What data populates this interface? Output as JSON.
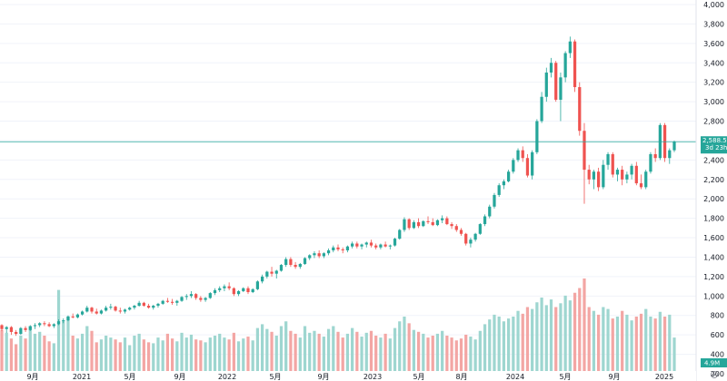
{
  "colors": {
    "up": "#26a69a",
    "down": "#ef5350",
    "up_volume": "#9ed6d0",
    "down_volume": "#f3a6a4",
    "price_line": "#26a69a",
    "text": "#131722",
    "axis_bg": "#ffffff"
  },
  "chart_data": {
    "type": "candlestick",
    "y_axis": {
      "ticks": [
        "4,000",
        "3,800",
        "3,600",
        "3,400",
        "3,200",
        "3,000",
        "2,800",
        "2,600",
        "2,400",
        "2,200",
        "2,000",
        "1,800",
        "1,600",
        "1,400",
        "1,200",
        "1,000",
        "800",
        "600",
        "400",
        "200"
      ],
      "tick_values": [
        4000,
        3800,
        3600,
        3400,
        3200,
        3000,
        2800,
        2600,
        2400,
        2200,
        2000,
        1800,
        1600,
        1400,
        1200,
        1000,
        800,
        600,
        400,
        200
      ],
      "range": [
        200,
        4000
      ]
    },
    "x_axis": {
      "labels": [
        "9月",
        "2021",
        "5月",
        "9月",
        "2022",
        "5月",
        "9月",
        "2023",
        "5月",
        "8月",
        "2024",
        "5月",
        "9月",
        "2025"
      ]
    },
    "current_price": {
      "value": "2,588.5",
      "countdown": "3d 23h"
    },
    "volume": {
      "label": "4.9M"
    },
    "candles": [
      [
        700,
        710,
        640,
        660
      ],
      [
        660,
        690,
        620,
        680
      ],
      [
        680,
        690,
        600,
        630
      ],
      [
        630,
        650,
        590,
        610
      ],
      [
        610,
        680,
        600,
        670
      ],
      [
        670,
        690,
        630,
        650
      ],
      [
        650,
        700,
        640,
        690
      ],
      [
        690,
        720,
        660,
        700
      ],
      [
        700,
        730,
        680,
        720
      ],
      [
        720,
        740,
        690,
        710
      ],
      [
        710,
        730,
        680,
        690
      ],
      [
        690,
        720,
        670,
        710
      ],
      [
        710,
        760,
        700,
        740
      ],
      [
        740,
        770,
        720,
        750
      ],
      [
        750,
        800,
        740,
        790
      ],
      [
        790,
        820,
        770,
        780
      ],
      [
        780,
        820,
        770,
        810
      ],
      [
        810,
        850,
        800,
        840
      ],
      [
        840,
        900,
        830,
        880
      ],
      [
        880,
        890,
        820,
        840
      ],
      [
        840,
        870,
        810,
        820
      ],
      [
        820,
        860,
        810,
        850
      ],
      [
        850,
        900,
        840,
        880
      ],
      [
        880,
        920,
        860,
        890
      ],
      [
        890,
        900,
        840,
        850
      ],
      [
        850,
        880,
        820,
        840
      ],
      [
        840,
        870,
        820,
        860
      ],
      [
        860,
        890,
        850,
        880
      ],
      [
        880,
        910,
        860,
        900
      ],
      [
        900,
        950,
        890,
        930
      ],
      [
        930,
        940,
        890,
        900
      ],
      [
        900,
        920,
        870,
        880
      ],
      [
        880,
        910,
        860,
        900
      ],
      [
        900,
        930,
        880,
        920
      ],
      [
        920,
        960,
        910,
        950
      ],
      [
        950,
        980,
        930,
        940
      ],
      [
        940,
        970,
        910,
        930
      ],
      [
        930,
        960,
        900,
        950
      ],
      [
        950,
        1000,
        940,
        990
      ],
      [
        990,
        1020,
        960,
        1000
      ],
      [
        1000,
        1050,
        980,
        1020
      ],
      [
        1020,
        1030,
        960,
        980
      ],
      [
        980,
        1000,
        940,
        960
      ],
      [
        960,
        990,
        940,
        980
      ],
      [
        980,
        1040,
        970,
        1030
      ],
      [
        1030,
        1080,
        1010,
        1060
      ],
      [
        1060,
        1100,
        1040,
        1080
      ],
      [
        1080,
        1120,
        1050,
        1100
      ],
      [
        1100,
        1140,
        1060,
        1080
      ],
      [
        1080,
        1090,
        1000,
        1020
      ],
      [
        1020,
        1060,
        1000,
        1050
      ],
      [
        1050,
        1090,
        1040,
        1080
      ],
      [
        1080,
        1100,
        1020,
        1040
      ],
      [
        1040,
        1080,
        1030,
        1070
      ],
      [
        1070,
        1160,
        1060,
        1150
      ],
      [
        1150,
        1220,
        1130,
        1200
      ],
      [
        1200,
        1260,
        1180,
        1250
      ],
      [
        1250,
        1300,
        1200,
        1230
      ],
      [
        1230,
        1270,
        1180,
        1260
      ],
      [
        1260,
        1330,
        1250,
        1320
      ],
      [
        1320,
        1400,
        1300,
        1380
      ],
      [
        1380,
        1400,
        1300,
        1320
      ],
      [
        1320,
        1350,
        1280,
        1300
      ],
      [
        1300,
        1340,
        1280,
        1330
      ],
      [
        1330,
        1400,
        1320,
        1390
      ],
      [
        1390,
        1430,
        1370,
        1420
      ],
      [
        1420,
        1460,
        1390,
        1440
      ],
      [
        1440,
        1470,
        1390,
        1410
      ],
      [
        1410,
        1450,
        1390,
        1440
      ],
      [
        1440,
        1490,
        1420,
        1470
      ],
      [
        1470,
        1520,
        1450,
        1500
      ],
      [
        1500,
        1530,
        1460,
        1480
      ],
      [
        1480,
        1500,
        1440,
        1470
      ],
      [
        1470,
        1520,
        1450,
        1510
      ],
      [
        1510,
        1560,
        1490,
        1540
      ],
      [
        1540,
        1560,
        1490,
        1510
      ],
      [
        1510,
        1540,
        1480,
        1530
      ],
      [
        1530,
        1560,
        1500,
        1550
      ],
      [
        1550,
        1580,
        1500,
        1520
      ],
      [
        1520,
        1540,
        1480,
        1500
      ],
      [
        1500,
        1540,
        1480,
        1530
      ],
      [
        1530,
        1560,
        1500,
        1510
      ],
      [
        1510,
        1530,
        1480,
        1520
      ],
      [
        1520,
        1600,
        1510,
        1590
      ],
      [
        1590,
        1690,
        1580,
        1680
      ],
      [
        1680,
        1810,
        1660,
        1790
      ],
      [
        1790,
        1800,
        1680,
        1700
      ],
      [
        1700,
        1780,
        1690,
        1760
      ],
      [
        1760,
        1800,
        1700,
        1720
      ],
      [
        1720,
        1780,
        1710,
        1770
      ],
      [
        1770,
        1820,
        1740,
        1760
      ],
      [
        1760,
        1800,
        1720,
        1730
      ],
      [
        1730,
        1790,
        1720,
        1780
      ],
      [
        1780,
        1830,
        1750,
        1800
      ],
      [
        1800,
        1820,
        1730,
        1740
      ],
      [
        1740,
        1760,
        1690,
        1720
      ],
      [
        1720,
        1740,
        1660,
        1680
      ],
      [
        1680,
        1700,
        1620,
        1640
      ],
      [
        1640,
        1650,
        1520,
        1540
      ],
      [
        1540,
        1600,
        1500,
        1580
      ],
      [
        1580,
        1650,
        1560,
        1640
      ],
      [
        1640,
        1750,
        1630,
        1740
      ],
      [
        1740,
        1840,
        1720,
        1820
      ],
      [
        1820,
        1940,
        1800,
        1920
      ],
      [
        1920,
        2060,
        1900,
        2040
      ],
      [
        2040,
        2160,
        2020,
        2140
      ],
      [
        2140,
        2200,
        2100,
        2180
      ],
      [
        2180,
        2300,
        2170,
        2280
      ],
      [
        2280,
        2420,
        2260,
        2400
      ],
      [
        2400,
        2520,
        2380,
        2500
      ],
      [
        2500,
        2540,
        2380,
        2420
      ],
      [
        2420,
        2460,
        2220,
        2240
      ],
      [
        2240,
        2500,
        2200,
        2480
      ],
      [
        2480,
        2820,
        2460,
        2800
      ],
      [
        2800,
        3100,
        2780,
        3050
      ],
      [
        3050,
        3350,
        3000,
        3300
      ],
      [
        3300,
        3450,
        3250,
        3400
      ],
      [
        3400,
        3420,
        3000,
        3020
      ],
      [
        3020,
        3300,
        2800,
        3250
      ],
      [
        3250,
        3520,
        3200,
        3500
      ],
      [
        3500,
        3670,
        3450,
        3620
      ],
      [
        3620,
        3640,
        3100,
        3150
      ],
      [
        3150,
        3200,
        2650,
        2700
      ],
      [
        2700,
        2780,
        1950,
        2300
      ],
      [
        2300,
        2350,
        2150,
        2200
      ],
      [
        2200,
        2300,
        2100,
        2280
      ],
      [
        2280,
        2320,
        2080,
        2120
      ],
      [
        2120,
        2400,
        2100,
        2350
      ],
      [
        2350,
        2480,
        2300,
        2460
      ],
      [
        2460,
        2480,
        2220,
        2250
      ],
      [
        2250,
        2320,
        2180,
        2300
      ],
      [
        2300,
        2340,
        2140,
        2200
      ],
      [
        2200,
        2280,
        2160,
        2250
      ],
      [
        2250,
        2360,
        2200,
        2340
      ],
      [
        2340,
        2380,
        2140,
        2160
      ],
      [
        2160,
        2250,
        2100,
        2120
      ],
      [
        2120,
        2300,
        2100,
        2280
      ],
      [
        2280,
        2480,
        2260,
        2460
      ],
      [
        2460,
        2520,
        2380,
        2420
      ],
      [
        2420,
        2780,
        2400,
        2760
      ],
      [
        2760,
        2780,
        2380,
        2420
      ],
      [
        2420,
        2520,
        2360,
        2500
      ],
      [
        2500,
        2600,
        2480,
        2588
      ]
    ],
    "volumes": [
      0.46,
      0.43,
      0.37,
      0.31,
      0.4,
      0.37,
      0.5,
      0.42,
      0.44,
      0.4,
      0.34,
      0.32,
      0.88,
      0.55,
      0.6,
      0.4,
      0.37,
      0.42,
      0.5,
      0.45,
      0.33,
      0.36,
      0.4,
      0.38,
      0.36,
      0.33,
      0.38,
      0.3,
      0.4,
      0.42,
      0.36,
      0.33,
      0.32,
      0.38,
      0.35,
      0.42,
      0.37,
      0.34,
      0.43,
      0.38,
      0.41,
      0.36,
      0.35,
      0.33,
      0.38,
      0.4,
      0.42,
      0.38,
      0.36,
      0.43,
      0.34,
      0.37,
      0.39,
      0.35,
      0.48,
      0.52,
      0.47,
      0.44,
      0.4,
      0.5,
      0.55,
      0.45,
      0.42,
      0.38,
      0.5,
      0.43,
      0.45,
      0.42,
      0.39,
      0.47,
      0.5,
      0.44,
      0.38,
      0.42,
      0.48,
      0.44,
      0.39,
      0.43,
      0.45,
      0.4,
      0.38,
      0.42,
      0.37,
      0.48,
      0.55,
      0.6,
      0.53,
      0.46,
      0.44,
      0.42,
      0.38,
      0.4,
      0.42,
      0.45,
      0.4,
      0.38,
      0.35,
      0.37,
      0.41,
      0.39,
      0.36,
      0.45,
      0.52,
      0.57,
      0.62,
      0.6,
      0.55,
      0.58,
      0.6,
      0.66,
      0.63,
      0.7,
      0.68,
      0.75,
      0.8,
      0.72,
      0.78,
      0.7,
      0.74,
      0.82,
      0.77,
      0.85,
      0.9,
      1.0,
      0.7,
      0.66,
      0.62,
      0.7,
      0.68,
      0.58,
      0.6,
      0.66,
      0.62,
      0.56,
      0.6,
      0.63,
      0.68,
      0.6,
      0.58,
      0.65,
      0.6,
      0.62,
      0.38
    ]
  }
}
